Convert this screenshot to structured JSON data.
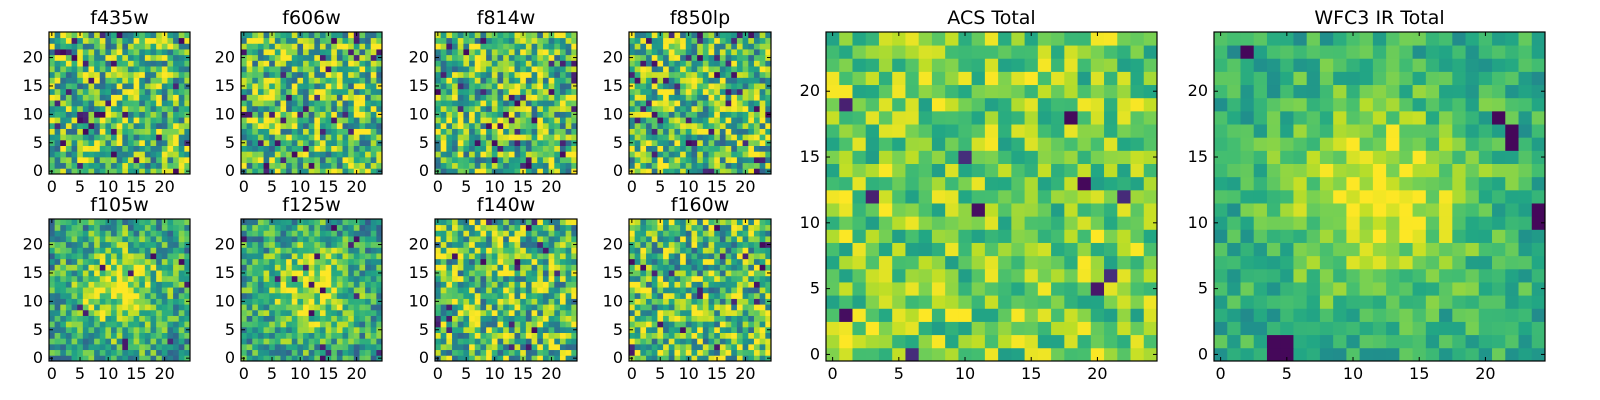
{
  "figure": {
    "description_kind": "image-grid"
  },
  "chart_data": [
    {
      "type": "heatmap",
      "title": "f435w",
      "grid": [
        25,
        25
      ],
      "xlim": [
        -0.5,
        24.5
      ],
      "ylim": [
        -0.5,
        24.5
      ],
      "x_ticks": [
        0,
        5,
        10,
        15,
        20
      ],
      "x_tick_labels": [
        "0",
        "5",
        "10",
        "15",
        "20"
      ],
      "y_ticks": [
        0,
        5,
        10,
        15,
        20
      ],
      "y_tick_labels": [
        "0",
        "5",
        "10",
        "15",
        "20"
      ],
      "colormap": "viridis",
      "pattern": "noise",
      "dark_fraction": 0.05,
      "seed": 11
    },
    {
      "type": "heatmap",
      "title": "f606w",
      "grid": [
        25,
        25
      ],
      "xlim": [
        -0.5,
        24.5
      ],
      "ylim": [
        -0.5,
        24.5
      ],
      "x_ticks": [
        0,
        5,
        10,
        15,
        20
      ],
      "x_tick_labels": [
        "0",
        "5",
        "10",
        "15",
        "20"
      ],
      "y_ticks": [
        0,
        5,
        10,
        15,
        20
      ],
      "y_tick_labels": [
        "0",
        "5",
        "10",
        "15",
        "20"
      ],
      "colormap": "viridis",
      "pattern": "noise",
      "dark_fraction": 0.05,
      "seed": 23
    },
    {
      "type": "heatmap",
      "title": "f814w",
      "grid": [
        25,
        25
      ],
      "xlim": [
        -0.5,
        24.5
      ],
      "ylim": [
        -0.5,
        24.5
      ],
      "x_ticks": [
        0,
        5,
        10,
        15,
        20
      ],
      "x_tick_labels": [
        "0",
        "5",
        "10",
        "15",
        "20"
      ],
      "y_ticks": [
        0,
        5,
        10,
        15,
        20
      ],
      "y_tick_labels": [
        "0",
        "5",
        "10",
        "15",
        "20"
      ],
      "colormap": "viridis",
      "pattern": "noise",
      "dark_fraction": 0.05,
      "seed": 37
    },
    {
      "type": "heatmap",
      "title": "f850lp",
      "grid": [
        25,
        25
      ],
      "xlim": [
        -0.5,
        24.5
      ],
      "ylim": [
        -0.5,
        24.5
      ],
      "x_ticks": [
        0,
        5,
        10,
        15,
        20
      ],
      "x_tick_labels": [
        "0",
        "5",
        "10",
        "15",
        "20"
      ],
      "y_ticks": [
        0,
        5,
        10,
        15,
        20
      ],
      "y_tick_labels": [
        "0",
        "5",
        "10",
        "15",
        "20"
      ],
      "colormap": "viridis",
      "pattern": "noise",
      "dark_fraction": 0.07,
      "seed": 41
    },
    {
      "type": "heatmap",
      "title": "f105w",
      "grid": [
        25,
        25
      ],
      "xlim": [
        -0.5,
        24.5
      ],
      "ylim": [
        -0.5,
        24.5
      ],
      "x_ticks": [
        0,
        5,
        10,
        15,
        20
      ],
      "x_tick_labels": [
        "0",
        "5",
        "10",
        "15",
        "20"
      ],
      "y_ticks": [
        0,
        5,
        10,
        15,
        20
      ],
      "y_tick_labels": [
        "0",
        "5",
        "10",
        "15",
        "20"
      ],
      "colormap": "viridis",
      "pattern": "blob",
      "dark_fraction": 0.02,
      "seed": 53
    },
    {
      "type": "heatmap",
      "title": "f125w",
      "grid": [
        25,
        25
      ],
      "xlim": [
        -0.5,
        24.5
      ],
      "ylim": [
        -0.5,
        24.5
      ],
      "x_ticks": [
        0,
        5,
        10,
        15,
        20
      ],
      "x_tick_labels": [
        "0",
        "5",
        "10",
        "15",
        "20"
      ],
      "y_ticks": [
        0,
        5,
        10,
        15,
        20
      ],
      "y_tick_labels": [
        "0",
        "5",
        "10",
        "15",
        "20"
      ],
      "colormap": "viridis",
      "pattern": "blob",
      "dark_fraction": 0.03,
      "seed": 67
    },
    {
      "type": "heatmap",
      "title": "f140w",
      "grid": [
        25,
        25
      ],
      "xlim": [
        -0.5,
        24.5
      ],
      "ylim": [
        -0.5,
        24.5
      ],
      "x_ticks": [
        0,
        5,
        10,
        15,
        20
      ],
      "x_tick_labels": [
        "0",
        "5",
        "10",
        "15",
        "20"
      ],
      "y_ticks": [
        0,
        5,
        10,
        15,
        20
      ],
      "y_tick_labels": [
        "0",
        "5",
        "10",
        "15",
        "20"
      ],
      "colormap": "viridis",
      "pattern": "noise",
      "dark_fraction": 0.03,
      "seed": 79
    },
    {
      "type": "heatmap",
      "title": "f160w",
      "grid": [
        25,
        25
      ],
      "xlim": [
        -0.5,
        24.5
      ],
      "ylim": [
        -0.5,
        24.5
      ],
      "x_ticks": [
        0,
        5,
        10,
        15,
        20
      ],
      "x_tick_labels": [
        "0",
        "5",
        "10",
        "15",
        "20"
      ],
      "y_ticks": [
        0,
        5,
        10,
        15,
        20
      ],
      "y_tick_labels": [
        "0",
        "5",
        "10",
        "15",
        "20"
      ],
      "colormap": "viridis",
      "pattern": "noise",
      "dark_fraction": 0.03,
      "seed": 83
    },
    {
      "type": "heatmap",
      "title": "ACS Total",
      "grid": [
        25,
        25
      ],
      "xlim": [
        -0.5,
        24.5
      ],
      "ylim": [
        -0.5,
        24.5
      ],
      "x_ticks": [
        0,
        5,
        10,
        15,
        20
      ],
      "x_tick_labels": [
        "0",
        "5",
        "10",
        "15",
        "20"
      ],
      "y_ticks": [
        0,
        5,
        10,
        15,
        20
      ],
      "y_tick_labels": [
        "0",
        "5",
        "10",
        "15",
        "20"
      ],
      "colormap": "viridis",
      "pattern": "soft-noise",
      "dark_fraction": 0.02,
      "seed": 97
    },
    {
      "type": "heatmap",
      "title": "WFC3 IR Total",
      "grid": [
        25,
        25
      ],
      "xlim": [
        -0.5,
        24.5
      ],
      "ylim": [
        -0.5,
        24.5
      ],
      "x_ticks": [
        0,
        5,
        10,
        15,
        20
      ],
      "x_tick_labels": [
        "0",
        "5",
        "10",
        "15",
        "20"
      ],
      "y_ticks": [
        0,
        5,
        10,
        15,
        20
      ],
      "y_tick_labels": [
        "0",
        "5",
        "10",
        "15",
        "20"
      ],
      "colormap": "viridis",
      "pattern": "center-blob",
      "dark_fraction": 0.0,
      "seed": 101,
      "dark_spots": [
        [
          4,
          1
        ],
        [
          5,
          1
        ],
        [
          4,
          0
        ],
        [
          5,
          0
        ],
        [
          22,
          17
        ],
        [
          22,
          16
        ],
        [
          24,
          10
        ],
        [
          24,
          11
        ],
        [
          2,
          23
        ],
        [
          21,
          18
        ]
      ]
    }
  ]
}
